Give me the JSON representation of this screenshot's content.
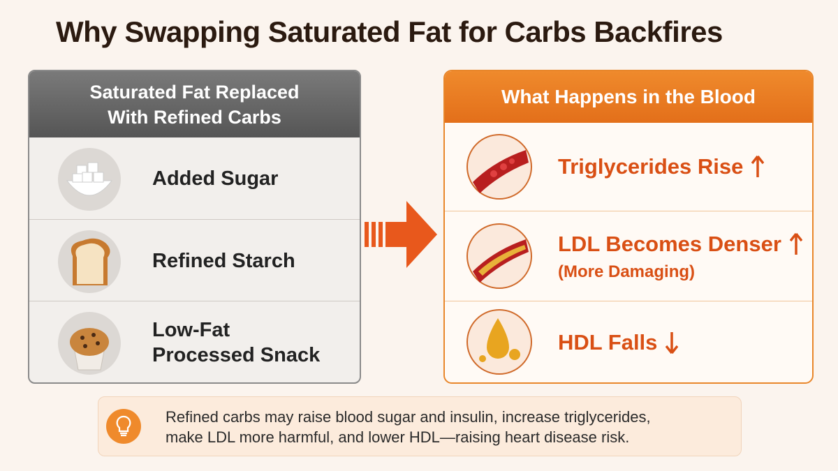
{
  "title": "Why Swapping Saturated Fat for Carbs Backfires",
  "left_panel": {
    "heading_lines": [
      "Saturated Fat Replaced",
      "With Refined Carbs"
    ],
    "items": [
      {
        "lines": [
          "Added Sugar"
        ]
      },
      {
        "lines": [
          "Refined Starch"
        ]
      },
      {
        "lines": [
          "Low-Fat",
          "Processed Snack"
        ]
      }
    ]
  },
  "right_panel": {
    "heading": "What Happens in the Blood",
    "items": [
      {
        "label": "Triglycerides Rise"
      },
      {
        "label": "LDL Becomes Denser",
        "note": "(More Damaging)"
      },
      {
        "label": "HDL Falls"
      }
    ]
  },
  "footer": {
    "lines": [
      "Refined carbs may raise blood sugar and insulin, increase triglycerides,",
      "make LDL more harmful, and lower HDL—raising heart disease risk."
    ]
  }
}
